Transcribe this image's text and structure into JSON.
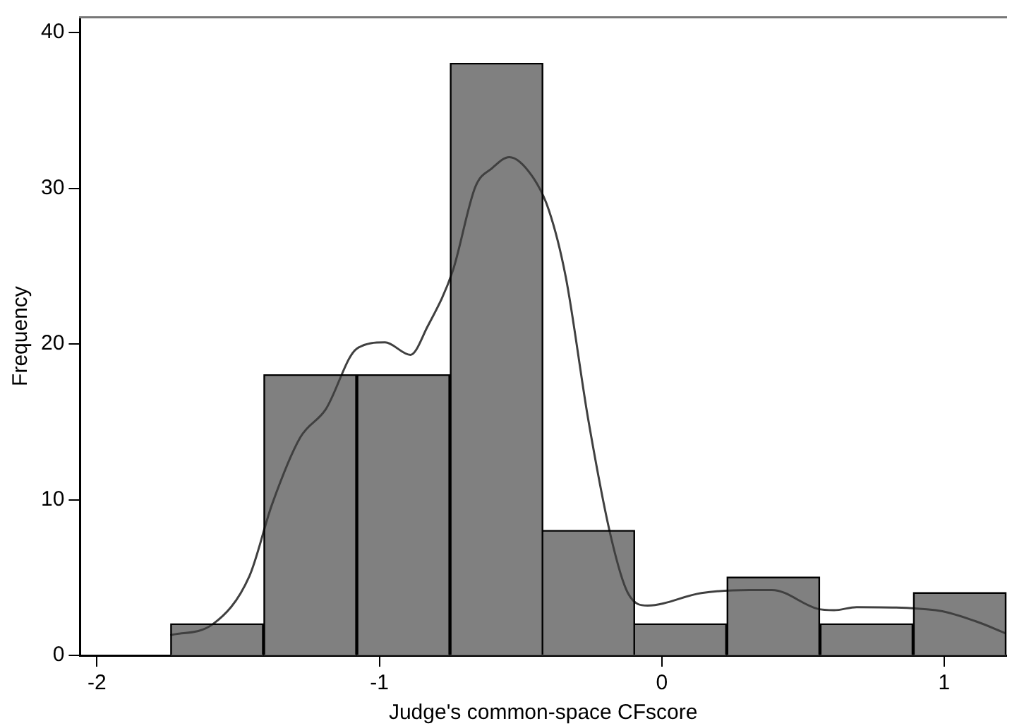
{
  "chart_data": {
    "type": "histogram",
    "xlabel": "Judge's common-space CFscore",
    "ylabel": "Frequency",
    "bins": [
      -1.74,
      -1.41,
      -1.08,
      -0.75,
      -0.42,
      -0.1,
      0.23,
      0.56,
      0.89,
      1.22
    ],
    "values": [
      2,
      18,
      18,
      38,
      8,
      2,
      5,
      2,
      4
    ],
    "color": "#808080",
    "series": [
      {
        "type": "line",
        "color": "#404040",
        "x": [
          -1.74,
          -1.59,
          -1.46,
          -1.38,
          -1.28,
          -1.19,
          -1.08,
          -0.98,
          -0.89,
          -0.83,
          -0.74,
          -0.66,
          -0.6,
          -0.54,
          -0.46,
          -0.4,
          -0.34,
          -0.26,
          -0.18,
          -0.12,
          -0.05,
          0.14,
          0.31,
          0.39,
          0.55,
          0.61,
          0.69,
          0.97,
          1.11,
          1.22
        ],
        "values": [
          1.3,
          2,
          5.1,
          9.7,
          14,
          15.8,
          19.7,
          20.1,
          19.3,
          21.1,
          24.7,
          30.1,
          31.3,
          32,
          30.8,
          28.6,
          24.3,
          15.1,
          7.6,
          4,
          3.2,
          4,
          4.2,
          4.2,
          3,
          2.9,
          3.1,
          2.9,
          2.2,
          1.4
        ]
      }
    ],
    "xlim": [
      -2.06,
      1.22
    ],
    "xticks": [
      -2,
      -1,
      0,
      1
    ],
    "ylim": [
      0,
      41
    ],
    "yticks": [
      0,
      10,
      20,
      30,
      40
    ],
    "grid": false,
    "legend": false,
    "marker": "none"
  }
}
